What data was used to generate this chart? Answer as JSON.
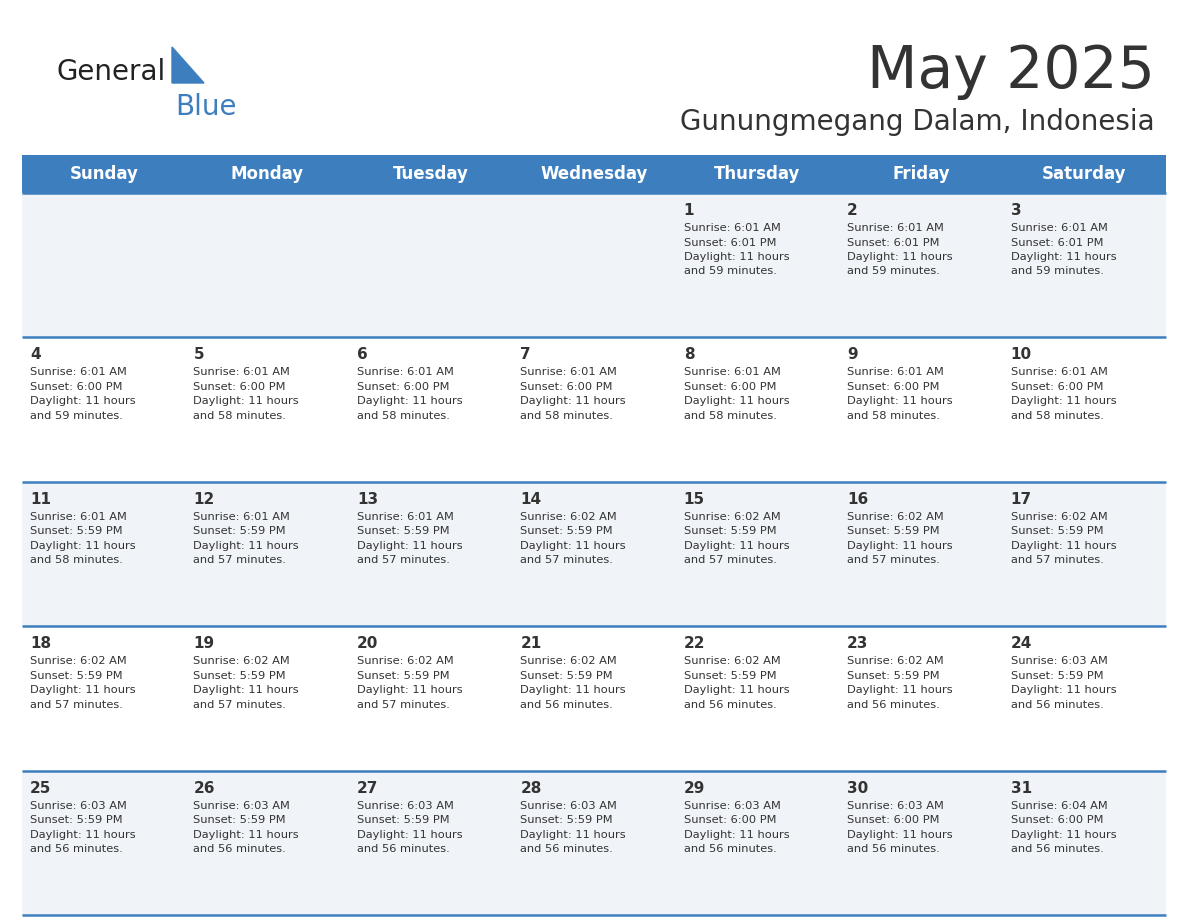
{
  "title": "May 2025",
  "subtitle": "Gunungmegang Dalam, Indonesia",
  "header_color": "#3d7ebf",
  "header_text_color": "#ffffff",
  "days_of_week": [
    "Sunday",
    "Monday",
    "Tuesday",
    "Wednesday",
    "Thursday",
    "Friday",
    "Saturday"
  ],
  "bg_color": "#ffffff",
  "cell_bg_row0": "#f0f4f8",
  "cell_bg_row1": "#ffffff",
  "cell_bg_row2": "#f0f4f8",
  "cell_bg_row3": "#ffffff",
  "cell_bg_row4": "#f0f4f8",
  "row_line_color": "#3d7ebf",
  "text_color": "#333333",
  "calendar_data": [
    [
      {
        "day": "",
        "sunrise": "",
        "sunset": "",
        "daylight": ""
      },
      {
        "day": "",
        "sunrise": "",
        "sunset": "",
        "daylight": ""
      },
      {
        "day": "",
        "sunrise": "",
        "sunset": "",
        "daylight": ""
      },
      {
        "day": "",
        "sunrise": "",
        "sunset": "",
        "daylight": ""
      },
      {
        "day": "1",
        "sunrise": "6:01 AM",
        "sunset": "6:01 PM",
        "daylight": "11 hours and 59 minutes."
      },
      {
        "day": "2",
        "sunrise": "6:01 AM",
        "sunset": "6:01 PM",
        "daylight": "11 hours and 59 minutes."
      },
      {
        "day": "3",
        "sunrise": "6:01 AM",
        "sunset": "6:01 PM",
        "daylight": "11 hours and 59 minutes."
      }
    ],
    [
      {
        "day": "4",
        "sunrise": "6:01 AM",
        "sunset": "6:00 PM",
        "daylight": "11 hours and 59 minutes."
      },
      {
        "day": "5",
        "sunrise": "6:01 AM",
        "sunset": "6:00 PM",
        "daylight": "11 hours and 58 minutes."
      },
      {
        "day": "6",
        "sunrise": "6:01 AM",
        "sunset": "6:00 PM",
        "daylight": "11 hours and 58 minutes."
      },
      {
        "day": "7",
        "sunrise": "6:01 AM",
        "sunset": "6:00 PM",
        "daylight": "11 hours and 58 minutes."
      },
      {
        "day": "8",
        "sunrise": "6:01 AM",
        "sunset": "6:00 PM",
        "daylight": "11 hours and 58 minutes."
      },
      {
        "day": "9",
        "sunrise": "6:01 AM",
        "sunset": "6:00 PM",
        "daylight": "11 hours and 58 minutes."
      },
      {
        "day": "10",
        "sunrise": "6:01 AM",
        "sunset": "6:00 PM",
        "daylight": "11 hours and 58 minutes."
      }
    ],
    [
      {
        "day": "11",
        "sunrise": "6:01 AM",
        "sunset": "5:59 PM",
        "daylight": "11 hours and 58 minutes."
      },
      {
        "day": "12",
        "sunrise": "6:01 AM",
        "sunset": "5:59 PM",
        "daylight": "11 hours and 57 minutes."
      },
      {
        "day": "13",
        "sunrise": "6:01 AM",
        "sunset": "5:59 PM",
        "daylight": "11 hours and 57 minutes."
      },
      {
        "day": "14",
        "sunrise": "6:02 AM",
        "sunset": "5:59 PM",
        "daylight": "11 hours and 57 minutes."
      },
      {
        "day": "15",
        "sunrise": "6:02 AM",
        "sunset": "5:59 PM",
        "daylight": "11 hours and 57 minutes."
      },
      {
        "day": "16",
        "sunrise": "6:02 AM",
        "sunset": "5:59 PM",
        "daylight": "11 hours and 57 minutes."
      },
      {
        "day": "17",
        "sunrise": "6:02 AM",
        "sunset": "5:59 PM",
        "daylight": "11 hours and 57 minutes."
      }
    ],
    [
      {
        "day": "18",
        "sunrise": "6:02 AM",
        "sunset": "5:59 PM",
        "daylight": "11 hours and 57 minutes."
      },
      {
        "day": "19",
        "sunrise": "6:02 AM",
        "sunset": "5:59 PM",
        "daylight": "11 hours and 57 minutes."
      },
      {
        "day": "20",
        "sunrise": "6:02 AM",
        "sunset": "5:59 PM",
        "daylight": "11 hours and 57 minutes."
      },
      {
        "day": "21",
        "sunrise": "6:02 AM",
        "sunset": "5:59 PM",
        "daylight": "11 hours and 56 minutes."
      },
      {
        "day": "22",
        "sunrise": "6:02 AM",
        "sunset": "5:59 PM",
        "daylight": "11 hours and 56 minutes."
      },
      {
        "day": "23",
        "sunrise": "6:02 AM",
        "sunset": "5:59 PM",
        "daylight": "11 hours and 56 minutes."
      },
      {
        "day": "24",
        "sunrise": "6:03 AM",
        "sunset": "5:59 PM",
        "daylight": "11 hours and 56 minutes."
      }
    ],
    [
      {
        "day": "25",
        "sunrise": "6:03 AM",
        "sunset": "5:59 PM",
        "daylight": "11 hours and 56 minutes."
      },
      {
        "day": "26",
        "sunrise": "6:03 AM",
        "sunset": "5:59 PM",
        "daylight": "11 hours and 56 minutes."
      },
      {
        "day": "27",
        "sunrise": "6:03 AM",
        "sunset": "5:59 PM",
        "daylight": "11 hours and 56 minutes."
      },
      {
        "day": "28",
        "sunrise": "6:03 AM",
        "sunset": "5:59 PM",
        "daylight": "11 hours and 56 minutes."
      },
      {
        "day": "29",
        "sunrise": "6:03 AM",
        "sunset": "6:00 PM",
        "daylight": "11 hours and 56 minutes."
      },
      {
        "day": "30",
        "sunrise": "6:03 AM",
        "sunset": "6:00 PM",
        "daylight": "11 hours and 56 minutes."
      },
      {
        "day": "31",
        "sunrise": "6:04 AM",
        "sunset": "6:00 PM",
        "daylight": "11 hours and 56 minutes."
      }
    ]
  ],
  "logo_general_color": "#222222",
  "logo_blue_color": "#3d7ebf",
  "title_fontsize": 42,
  "subtitle_fontsize": 20,
  "day_header_fontsize": 12,
  "day_number_fontsize": 11,
  "cell_text_fontsize": 8.2
}
